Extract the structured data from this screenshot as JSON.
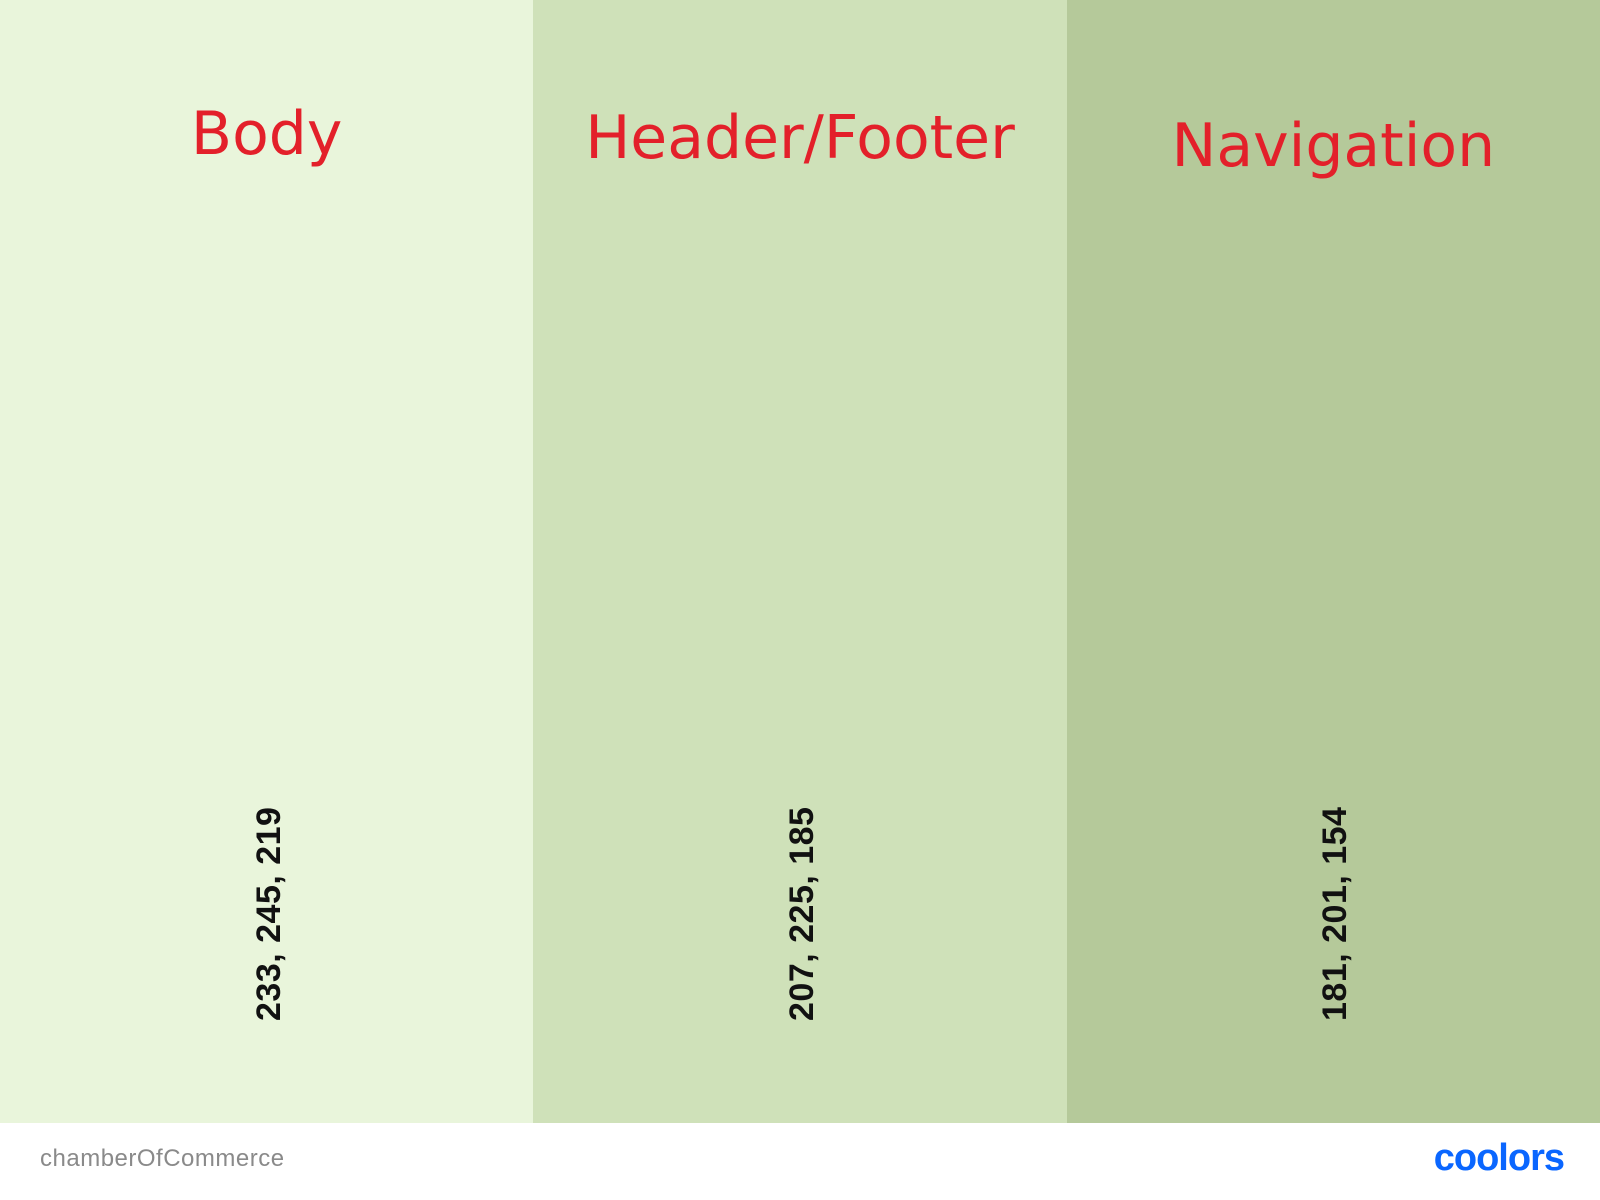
{
  "palette": {
    "swatches": [
      {
        "label": "Body",
        "code": "233, 245, 219",
        "color": "#e9f5db"
      },
      {
        "label": "Header/Footer",
        "code": "207, 225, 185",
        "color": "#cfe1b9"
      },
      {
        "label": "Navigation",
        "code": "181, 201, 154",
        "color": "#b5c99a"
      }
    ]
  },
  "footer": {
    "palette_name": "chamberOfCommerce",
    "brand": "coolors",
    "brand_color": "#0a66ff"
  },
  "label_color": "#e3202a"
}
